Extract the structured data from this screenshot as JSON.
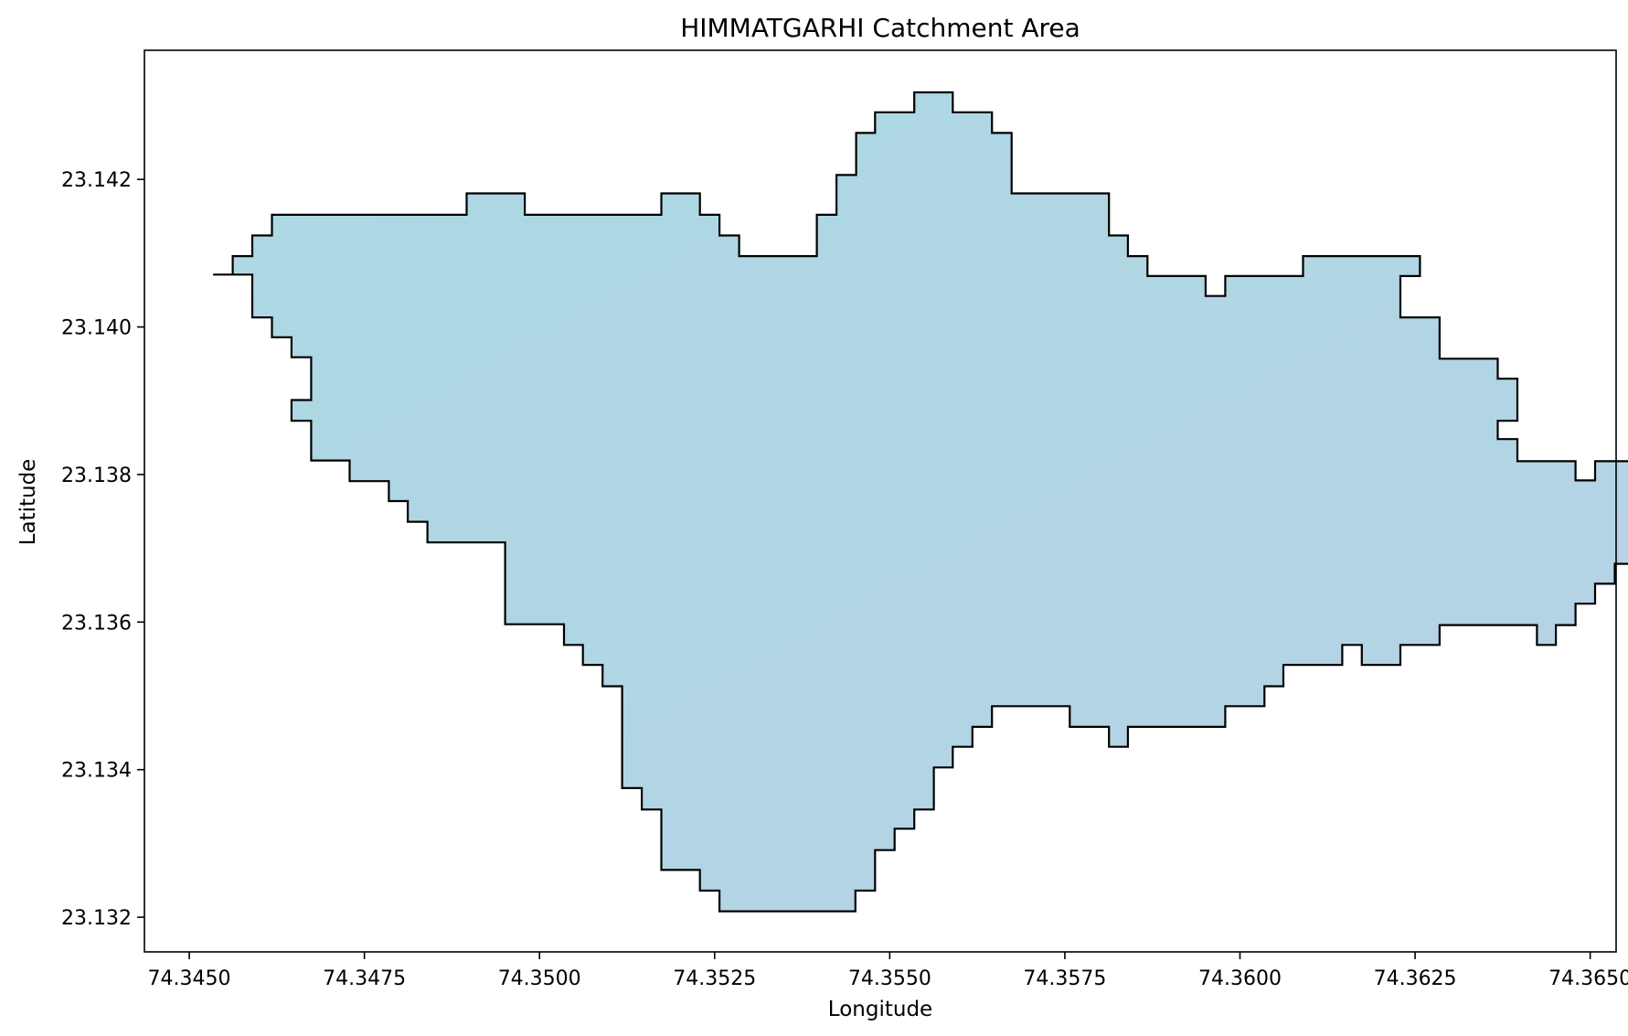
{
  "title": "HIMMATGARHI Catchment Area",
  "x_axis": {
    "label": "Longitude",
    "ticks": [
      74.345,
      74.3475,
      74.35,
      74.3525,
      74.355,
      74.3575,
      74.36,
      74.3625,
      74.365
    ],
    "tick_labels": [
      "74.3450",
      "74.3475",
      "74.3500",
      "74.3525",
      "74.3550",
      "74.3575",
      "74.3600",
      "74.3625",
      "74.3650"
    ],
    "range": [
      74.34436,
      74.36537
    ]
  },
  "y_axis": {
    "label": "Latitude",
    "ticks": [
      23.132,
      23.134,
      23.136,
      23.138,
      23.14,
      23.142
    ],
    "tick_labels": [
      "23.132",
      "23.134",
      "23.136",
      "23.138",
      "23.140",
      "23.142"
    ],
    "range": [
      23.13153,
      23.14375
    ]
  },
  "grid": false,
  "catchment": {
    "name": "HIMMATGARHI",
    "fill_color": "#b5d5e5",
    "edge_color": "#000000",
    "boundary": [
      [
        74.34534,
        23.14071
      ],
      [
        74.34562,
        23.14071
      ],
      [
        74.34562,
        23.14096
      ],
      [
        74.3459,
        23.14096
      ],
      [
        74.3459,
        23.14124
      ],
      [
        74.34618,
        23.14124
      ],
      [
        74.34618,
        23.14152
      ],
      [
        74.34896,
        23.14152
      ],
      [
        74.34896,
        23.14181
      ],
      [
        74.34979,
        23.14181
      ],
      [
        74.34979,
        23.14152
      ],
      [
        74.35174,
        23.14152
      ],
      [
        74.35174,
        23.14181
      ],
      [
        74.35229,
        23.14181
      ],
      [
        74.35229,
        23.14152
      ],
      [
        74.35257,
        23.14152
      ],
      [
        74.35257,
        23.14124
      ],
      [
        74.35285,
        23.14124
      ],
      [
        74.35285,
        23.14096
      ],
      [
        74.35396,
        23.14096
      ],
      [
        74.35396,
        23.14152
      ],
      [
        74.35424,
        23.14152
      ],
      [
        74.35424,
        23.14206
      ],
      [
        74.35452,
        23.14206
      ],
      [
        74.35452,
        23.14263
      ],
      [
        74.35479,
        23.14263
      ],
      [
        74.35479,
        23.14291
      ],
      [
        74.35535,
        23.14291
      ],
      [
        74.35535,
        23.14318
      ],
      [
        74.3559,
        23.14318
      ],
      [
        74.3559,
        23.14291
      ],
      [
        74.35646,
        23.14291
      ],
      [
        74.35646,
        23.14263
      ],
      [
        74.35674,
        23.14263
      ],
      [
        74.35674,
        23.14181
      ],
      [
        74.35813,
        23.14181
      ],
      [
        74.35813,
        23.14124
      ],
      [
        74.3584,
        23.14124
      ],
      [
        74.3584,
        23.14096
      ],
      [
        74.35868,
        23.14096
      ],
      [
        74.35868,
        23.14069
      ],
      [
        74.35951,
        23.14069
      ],
      [
        74.35951,
        23.14042
      ],
      [
        74.35979,
        23.14042
      ],
      [
        74.35979,
        23.14069
      ],
      [
        74.3609,
        23.14069
      ],
      [
        74.3609,
        23.14096
      ],
      [
        74.36257,
        23.14096
      ],
      [
        74.36257,
        23.14069
      ],
      [
        74.36229,
        23.14069
      ],
      [
        74.36229,
        23.14013
      ],
      [
        74.36285,
        23.14013
      ],
      [
        74.36285,
        23.13957
      ],
      [
        74.36368,
        23.13957
      ],
      [
        74.36368,
        23.1393
      ],
      [
        74.36396,
        23.1393
      ],
      [
        74.36396,
        23.13873
      ],
      [
        74.36368,
        23.13873
      ],
      [
        74.36368,
        23.13848
      ],
      [
        74.36396,
        23.13848
      ],
      [
        74.36396,
        23.13818
      ],
      [
        74.36479,
        23.13818
      ],
      [
        74.36479,
        23.13792
      ],
      [
        74.36507,
        23.13792
      ],
      [
        74.36507,
        23.13818
      ],
      [
        74.3659,
        23.13818
      ],
      [
        74.3659,
        23.13846
      ],
      [
        74.36618,
        23.13846
      ],
      [
        74.36618,
        23.13764
      ],
      [
        74.3659,
        23.13764
      ],
      [
        74.3659,
        23.13708
      ],
      [
        74.36562,
        23.13708
      ],
      [
        74.36562,
        23.13679
      ],
      [
        74.36535,
        23.13679
      ],
      [
        74.36535,
        23.13652
      ],
      [
        74.36507,
        23.13652
      ],
      [
        74.36507,
        23.13625
      ],
      [
        74.36479,
        23.13625
      ],
      [
        74.36479,
        23.13596
      ],
      [
        74.36451,
        23.13596
      ],
      [
        74.36451,
        23.13569
      ],
      [
        74.36424,
        23.13569
      ],
      [
        74.36424,
        23.13596
      ],
      [
        74.36285,
        23.13596
      ],
      [
        74.36285,
        23.13569
      ],
      [
        74.36229,
        23.13569
      ],
      [
        74.36229,
        23.13542
      ],
      [
        74.36174,
        23.13542
      ],
      [
        74.36174,
        23.13569
      ],
      [
        74.36146,
        23.13569
      ],
      [
        74.36146,
        23.13542
      ],
      [
        74.36062,
        23.13542
      ],
      [
        74.36062,
        23.13513
      ],
      [
        74.36035,
        23.13513
      ],
      [
        74.36035,
        23.13486
      ],
      [
        74.35979,
        23.13486
      ],
      [
        74.35979,
        23.13458
      ],
      [
        74.3584,
        23.13458
      ],
      [
        74.3584,
        23.13431
      ],
      [
        74.35813,
        23.13431
      ],
      [
        74.35813,
        23.13458
      ],
      [
        74.35757,
        23.13458
      ],
      [
        74.35757,
        23.13486
      ],
      [
        74.35646,
        23.13486
      ],
      [
        74.35646,
        23.13458
      ],
      [
        74.35618,
        23.13458
      ],
      [
        74.35618,
        23.13431
      ],
      [
        74.3559,
        23.13431
      ],
      [
        74.3559,
        23.13403
      ],
      [
        74.35563,
        23.13403
      ],
      [
        74.35563,
        23.13346
      ],
      [
        74.35535,
        23.13346
      ],
      [
        74.35535,
        23.1332
      ],
      [
        74.35507,
        23.1332
      ],
      [
        74.35507,
        23.13291
      ],
      [
        74.35479,
        23.13291
      ],
      [
        74.35479,
        23.13236
      ],
      [
        74.35451,
        23.13236
      ],
      [
        74.35451,
        23.13208
      ],
      [
        74.35257,
        23.13208
      ],
      [
        74.35257,
        23.13236
      ],
      [
        74.35229,
        23.13236
      ],
      [
        74.35229,
        23.13264
      ],
      [
        74.35174,
        23.13264
      ],
      [
        74.35174,
        23.13346
      ],
      [
        74.35146,
        23.13346
      ],
      [
        74.35146,
        23.13375
      ],
      [
        74.35118,
        23.13375
      ],
      [
        74.35118,
        23.13513
      ],
      [
        74.3509,
        23.13513
      ],
      [
        74.3509,
        23.13542
      ],
      [
        74.35062,
        23.13542
      ],
      [
        74.35062,
        23.13569
      ],
      [
        74.35035,
        23.13569
      ],
      [
        74.35035,
        23.13597
      ],
      [
        74.34951,
        23.13597
      ],
      [
        74.34951,
        23.13708
      ],
      [
        74.3484,
        23.13708
      ],
      [
        74.3484,
        23.13736
      ],
      [
        74.34812,
        23.13736
      ],
      [
        74.34812,
        23.13764
      ],
      [
        74.34785,
        23.13764
      ],
      [
        74.34785,
        23.13791
      ],
      [
        74.34729,
        23.13791
      ],
      [
        74.34729,
        23.13819
      ],
      [
        74.34674,
        23.13819
      ],
      [
        74.34674,
        23.13873
      ],
      [
        74.34646,
        23.13873
      ],
      [
        74.34646,
        23.13901
      ],
      [
        74.34674,
        23.13901
      ],
      [
        74.34674,
        23.13959
      ],
      [
        74.34646,
        23.13959
      ],
      [
        74.34646,
        23.13986
      ],
      [
        74.34618,
        23.13986
      ],
      [
        74.34618,
        23.14013
      ],
      [
        74.3459,
        23.14013
      ],
      [
        74.3459,
        23.14071
      ],
      [
        74.34534,
        23.14071
      ]
    ]
  }
}
